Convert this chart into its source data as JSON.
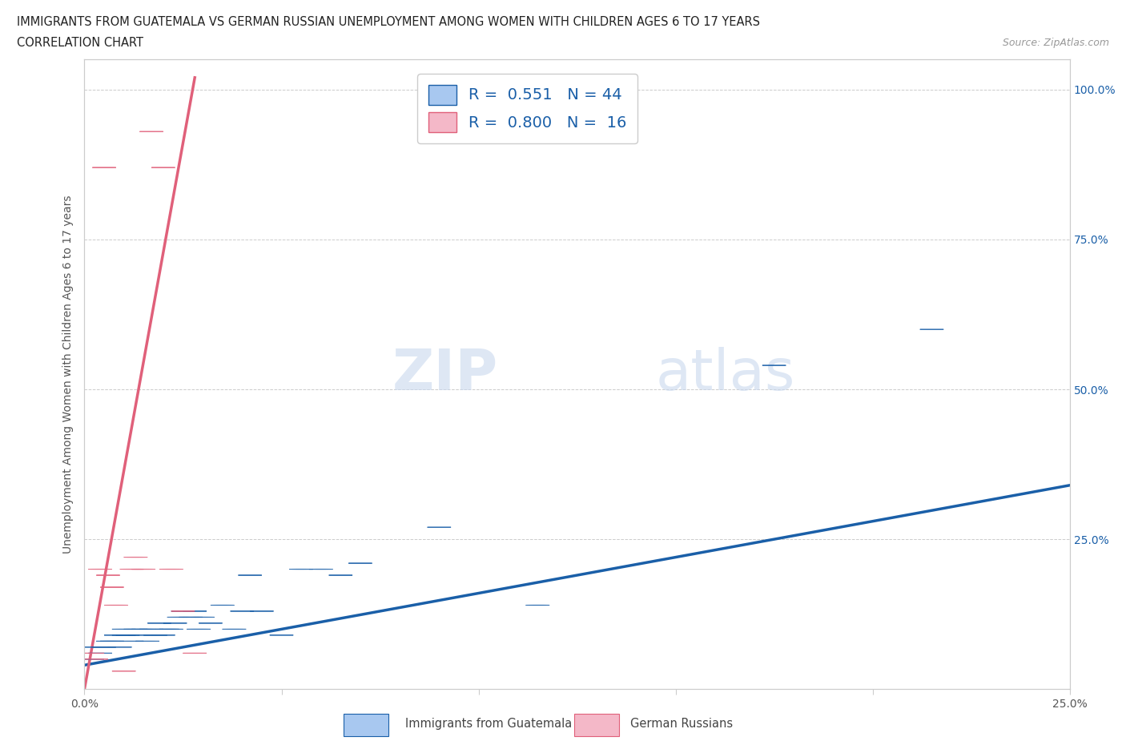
{
  "title_line1": "IMMIGRANTS FROM GUATEMALA VS GERMAN RUSSIAN UNEMPLOYMENT AMONG WOMEN WITH CHILDREN AGES 6 TO 17 YEARS",
  "title_line2": "CORRELATION CHART",
  "source_text": "Source: ZipAtlas.com",
  "ylabel": "Unemployment Among Women with Children Ages 6 to 17 years",
  "xlim": [
    0.0,
    0.25
  ],
  "ylim": [
    0.0,
    1.05
  ],
  "xticks": [
    0.0,
    0.05,
    0.1,
    0.15,
    0.2,
    0.25
  ],
  "xticklabels": [
    "0.0%",
    "",
    "",
    "",
    "",
    "25.0%"
  ],
  "ytick_positions": [
    0.0,
    0.25,
    0.5,
    0.75,
    1.0
  ],
  "yticklabels_right": [
    "",
    "25.0%",
    "50.0%",
    "75.0%",
    "100.0%"
  ],
  "r_blue": 0.551,
  "n_blue": 44,
  "r_pink": 0.8,
  "n_pink": 16,
  "blue_color": "#a8c8f0",
  "pink_color": "#f4b8c8",
  "line_blue_color": "#1a5fa8",
  "line_pink_color": "#e0607a",
  "legend_text_color": "#1a5fa8",
  "watermark_zip": "ZIP",
  "watermark_atlas": "atlas",
  "blue_scatter_x": [
    0.002,
    0.003,
    0.004,
    0.005,
    0.006,
    0.007,
    0.008,
    0.009,
    0.01,
    0.01,
    0.011,
    0.012,
    0.013,
    0.014,
    0.015,
    0.016,
    0.017,
    0.018,
    0.019,
    0.02,
    0.021,
    0.022,
    0.023,
    0.024,
    0.025,
    0.027,
    0.028,
    0.029,
    0.03,
    0.032,
    0.035,
    0.038,
    0.04,
    0.042,
    0.045,
    0.05,
    0.055,
    0.06,
    0.065,
    0.07,
    0.09,
    0.115,
    0.175,
    0.215
  ],
  "blue_scatter_y": [
    0.05,
    0.07,
    0.06,
    0.07,
    0.08,
    0.08,
    0.09,
    0.07,
    0.09,
    0.1,
    0.09,
    0.08,
    0.1,
    0.09,
    0.1,
    0.08,
    0.1,
    0.09,
    0.11,
    0.09,
    0.1,
    0.1,
    0.11,
    0.12,
    0.13,
    0.12,
    0.13,
    0.1,
    0.12,
    0.11,
    0.14,
    0.1,
    0.13,
    0.19,
    0.13,
    0.09,
    0.2,
    0.2,
    0.19,
    0.21,
    0.27,
    0.14,
    0.54,
    0.6
  ],
  "pink_scatter_x": [
    0.002,
    0.003,
    0.004,
    0.005,
    0.006,
    0.007,
    0.008,
    0.01,
    0.012,
    0.013,
    0.015,
    0.017,
    0.02,
    0.022,
    0.025,
    0.028
  ],
  "pink_scatter_y": [
    0.06,
    0.05,
    0.2,
    0.87,
    0.19,
    0.17,
    0.14,
    0.03,
    0.2,
    0.22,
    0.2,
    0.93,
    0.87,
    0.2,
    0.13,
    0.06
  ],
  "blue_line_x": [
    0.0,
    0.25
  ],
  "blue_line_y": [
    0.04,
    0.34
  ],
  "pink_line_x": [
    0.0,
    0.028
  ],
  "pink_line_y": [
    0.0,
    1.02
  ],
  "grid_color": "#cccccc",
  "bg_color": "#ffffff"
}
